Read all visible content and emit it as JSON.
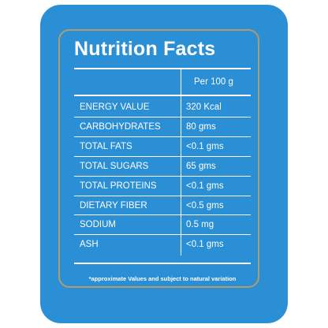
{
  "panel": {
    "title": "Nutrition Facts",
    "column_header": "Per 100 g",
    "rows": [
      {
        "label": "ENERGY VALUE",
        "value": "320 Kcal"
      },
      {
        "label": "CARBOHYDRATES",
        "value": "80 gms"
      },
      {
        "label": "TOTAL FATS",
        "value": "<0.1 gms"
      },
      {
        "label": "TOTAL SUGARS",
        "value": "65 gms"
      },
      {
        "label": "TOTAL PROTEINS",
        "value": "<0.1 gms"
      },
      {
        "label": "DIETARY FIBER",
        "value": "<0.5 gms"
      },
      {
        "label": "SODIUM",
        "value": "0.5 mg"
      },
      {
        "label": "ASH",
        "value": "<0.1 gms"
      }
    ],
    "footnote": "*approximate Values and subject to natural variation"
  },
  "colors": {
    "panel_background": "#2a8fd5",
    "frame_border": "#b59a6a",
    "text": "#ffffff"
  }
}
